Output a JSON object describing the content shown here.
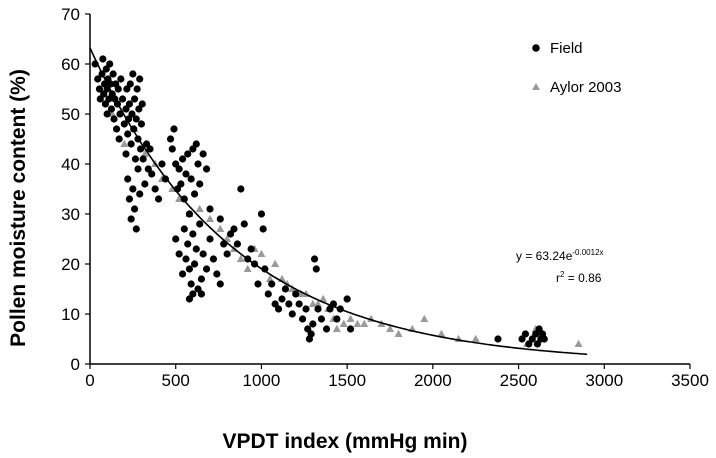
{
  "chart_data": {
    "type": "scatter",
    "xlabel": "VPDT index (mmHg min)",
    "ylabel": "Pollen moisture content (%)",
    "xlim": [
      0,
      3500
    ],
    "ylim": [
      0,
      70
    ],
    "x_ticks": [
      "0",
      "500",
      "1000",
      "1500",
      "2000",
      "2500",
      "3000",
      "3500"
    ],
    "y_ticks": [
      "0",
      "10",
      "20",
      "30",
      "40",
      "50",
      "60",
      "70"
    ],
    "grid": false,
    "legend_position": "top-right",
    "series": [
      {
        "name": "Field",
        "marker": "circle",
        "color": "#000000",
        "points": [
          [
            30,
            60
          ],
          [
            45,
            57
          ],
          [
            55,
            55
          ],
          [
            60,
            53
          ],
          [
            70,
            58
          ],
          [
            75,
            61
          ],
          [
            80,
            54
          ],
          [
            85,
            56
          ],
          [
            90,
            52
          ],
          [
            95,
            59
          ],
          [
            100,
            55
          ],
          [
            100,
            50
          ],
          [
            105,
            57
          ],
          [
            110,
            53
          ],
          [
            115,
            60
          ],
          [
            120,
            56
          ],
          [
            125,
            51
          ],
          [
            130,
            54
          ],
          [
            135,
            58
          ],
          [
            140,
            49
          ],
          [
            145,
            53
          ],
          [
            150,
            56
          ],
          [
            155,
            47
          ],
          [
            160,
            52
          ],
          [
            165,
            55
          ],
          [
            170,
            45
          ],
          [
            175,
            50
          ],
          [
            180,
            57
          ],
          [
            190,
            53
          ],
          [
            200,
            48
          ],
          [
            210,
            51
          ],
          [
            215,
            55
          ],
          [
            220,
            46
          ],
          [
            225,
            49
          ],
          [
            230,
            52
          ],
          [
            235,
            56
          ],
          [
            240,
            44
          ],
          [
            245,
            50
          ],
          [
            250,
            58
          ],
          [
            255,
            47
          ],
          [
            260,
            53
          ],
          [
            265,
            41
          ],
          [
            270,
            49
          ],
          [
            275,
            55
          ],
          [
            280,
            45
          ],
          [
            285,
            51
          ],
          [
            290,
            57
          ],
          [
            295,
            43
          ],
          [
            300,
            48
          ],
          [
            305,
            52
          ],
          [
            210,
            42
          ],
          [
            220,
            37
          ],
          [
            230,
            33
          ],
          [
            240,
            29
          ],
          [
            250,
            35
          ],
          [
            260,
            31
          ],
          [
            270,
            27
          ],
          [
            280,
            39
          ],
          [
            290,
            34
          ],
          [
            310,
            41
          ],
          [
            320,
            36
          ],
          [
            330,
            44
          ],
          [
            340,
            39
          ],
          [
            350,
            43
          ],
          [
            360,
            38
          ],
          [
            380,
            35
          ],
          [
            400,
            33
          ],
          [
            420,
            40
          ],
          [
            440,
            37
          ],
          [
            470,
            45
          ],
          [
            480,
            43
          ],
          [
            490,
            47
          ],
          [
            500,
            40
          ],
          [
            510,
            35
          ],
          [
            520,
            39
          ],
          [
            530,
            36
          ],
          [
            540,
            41
          ],
          [
            550,
            33
          ],
          [
            560,
            38
          ],
          [
            570,
            42
          ],
          [
            580,
            30
          ],
          [
            590,
            37
          ],
          [
            600,
            43
          ],
          [
            610,
            34
          ],
          [
            620,
            44
          ],
          [
            630,
            40
          ],
          [
            640,
            36
          ],
          [
            660,
            42
          ],
          [
            680,
            39
          ],
          [
            700,
            31
          ],
          [
            500,
            25
          ],
          [
            520,
            22
          ],
          [
            540,
            18
          ],
          [
            550,
            27
          ],
          [
            560,
            21
          ],
          [
            570,
            24
          ],
          [
            580,
            19
          ],
          [
            590,
            16
          ],
          [
            600,
            26
          ],
          [
            610,
            20
          ],
          [
            620,
            23
          ],
          [
            630,
            15
          ],
          [
            640,
            28
          ],
          [
            650,
            17
          ],
          [
            660,
            22
          ],
          [
            680,
            19
          ],
          [
            700,
            25
          ],
          [
            720,
            21
          ],
          [
            740,
            18
          ],
          [
            760,
            16
          ],
          [
            580,
            13
          ],
          [
            600,
            14
          ],
          [
            650,
            14
          ],
          [
            760,
            29
          ],
          [
            780,
            24
          ],
          [
            800,
            22
          ],
          [
            820,
            26
          ],
          [
            840,
            27
          ],
          [
            860,
            24
          ],
          [
            880,
            35
          ],
          [
            900,
            28
          ],
          [
            920,
            21
          ],
          [
            940,
            23
          ],
          [
            960,
            20
          ],
          [
            980,
            16
          ],
          [
            1000,
            30
          ],
          [
            1010,
            27
          ],
          [
            1020,
            19
          ],
          [
            1040,
            14
          ],
          [
            1060,
            16
          ],
          [
            1080,
            12
          ],
          [
            1100,
            11
          ],
          [
            1120,
            13
          ],
          [
            1140,
            15
          ],
          [
            1160,
            12
          ],
          [
            1180,
            10
          ],
          [
            1200,
            14
          ],
          [
            1220,
            12
          ],
          [
            1240,
            9
          ],
          [
            1260,
            11
          ],
          [
            1270,
            7
          ],
          [
            1280,
            5
          ],
          [
            1290,
            6
          ],
          [
            1300,
            8
          ],
          [
            1310,
            21
          ],
          [
            1320,
            19
          ],
          [
            1330,
            11
          ],
          [
            1350,
            9
          ],
          [
            1380,
            7
          ],
          [
            1400,
            11
          ],
          [
            1420,
            12
          ],
          [
            1440,
            9
          ],
          [
            1460,
            11
          ],
          [
            1500,
            13
          ],
          [
            1520,
            7
          ],
          [
            2380,
            5
          ],
          [
            2520,
            5
          ],
          [
            2540,
            6
          ],
          [
            2560,
            4
          ],
          [
            2580,
            5
          ],
          [
            2600,
            6
          ],
          [
            2610,
            4
          ],
          [
            2620,
            7
          ],
          [
            2630,
            5
          ],
          [
            2640,
            6
          ],
          [
            2650,
            5
          ]
        ]
      },
      {
        "name": "Aylor 2003",
        "marker": "triangle",
        "color": "#9a9a9a",
        "points": [
          [
            130,
            50
          ],
          [
            200,
            44
          ],
          [
            260,
            47
          ],
          [
            320,
            42
          ],
          [
            380,
            40
          ],
          [
            420,
            37
          ],
          [
            480,
            35
          ],
          [
            520,
            33
          ],
          [
            580,
            30
          ],
          [
            640,
            31
          ],
          [
            700,
            29
          ],
          [
            760,
            27
          ],
          [
            800,
            25
          ],
          [
            840,
            23
          ],
          [
            880,
            21
          ],
          [
            920,
            19
          ],
          [
            960,
            23
          ],
          [
            1000,
            22
          ],
          [
            1050,
            17
          ],
          [
            1080,
            20
          ],
          [
            1120,
            17
          ],
          [
            1150,
            16
          ],
          [
            1180,
            15
          ],
          [
            1230,
            14
          ],
          [
            1260,
            14
          ],
          [
            1300,
            12
          ],
          [
            1330,
            12
          ],
          [
            1360,
            13
          ],
          [
            1390,
            11
          ],
          [
            1420,
            9
          ],
          [
            1440,
            7
          ],
          [
            1480,
            8
          ],
          [
            1520,
            9
          ],
          [
            1560,
            8
          ],
          [
            1600,
            8
          ],
          [
            1640,
            9
          ],
          [
            1700,
            8
          ],
          [
            1750,
            7
          ],
          [
            1800,
            6
          ],
          [
            1880,
            7
          ],
          [
            1950,
            9
          ],
          [
            2050,
            6
          ],
          [
            2150,
            5
          ],
          [
            2250,
            5
          ],
          [
            2550,
            4
          ],
          [
            2600,
            7
          ],
          [
            2850,
            4
          ]
        ]
      }
    ],
    "fit": {
      "type": "exponential",
      "a": 63.24,
      "b": -0.0012,
      "x_range": [
        0,
        2900
      ],
      "equation_prefix": "y = 63.24e",
      "equation_exp": "-0.0012x",
      "r2_prefix": "r",
      "r2_sup": "2",
      "r2_value": " = 0.86"
    }
  }
}
